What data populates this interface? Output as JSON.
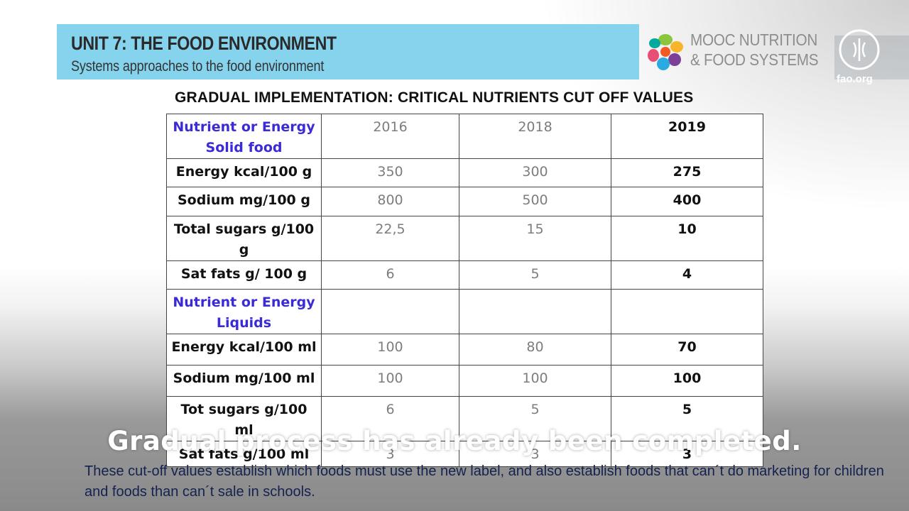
{
  "header": {
    "unit_title": "UNIT 7: THE FOOD ENVIRONMENT",
    "unit_subtitle": "Systems approaches to the food environment",
    "banner_color": "#86d3ee"
  },
  "mooc": {
    "line1": "MOOC NUTRITION",
    "line2": "& FOOD SYSTEMS",
    "logo_icon": "flower-petals-logo"
  },
  "fao": {
    "seal_letters": "F A O",
    "url": "fao.org"
  },
  "table": {
    "title": "GRADUAL IMPLEMENTATION: CRITICAL NUTRIENTS CUT OFF VALUES",
    "columns": [
      "2016",
      "2018",
      "2019"
    ],
    "solid_header": "Nutrient or Energy Solid food",
    "solid_rows": [
      {
        "label": "Energy kcal/100 g",
        "v2016": "350",
        "v2018": "300",
        "v2019": "275"
      },
      {
        "label": "Sodium  mg/100 g",
        "v2016": "800",
        "v2018": "500",
        "v2019": "400"
      },
      {
        "label": "Total sugars g/100 g",
        "v2016": "22,5",
        "v2018": "15",
        "v2019": "10"
      },
      {
        "label": "Sat fats g/ 100 g",
        "v2016": "6",
        "v2018": "5",
        "v2019": "4"
      }
    ],
    "liquid_header": "Nutrient or Energy Liquids",
    "liquid_rows": [
      {
        "label": "Energy kcal/100 ml",
        "v2016": "100",
        "v2018": "80",
        "v2019": "70"
      },
      {
        "label": "Sodium  mg/100 ml",
        "v2016": "100",
        "v2018": "100",
        "v2019": "100"
      },
      {
        "label": "Tot sugars g/100 ml",
        "v2016": "6",
        "v2018": "5",
        "v2019": "5"
      },
      {
        "label": "Sat fats g/100 ml",
        "v2016": "3",
        "v2018": "3",
        "v2019": "3"
      }
    ],
    "header_color": "#3a2bd6"
  },
  "caption": "Gradual process has already been completed.",
  "footnote": "These cut-off values establish which foods must use the new label, and also establish foods that  can´t do marketing for children and foods than can´t sale in schools."
}
